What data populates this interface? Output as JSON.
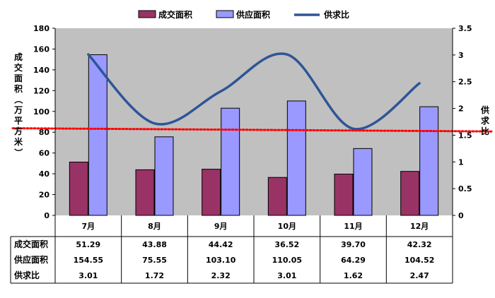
{
  "chart_data": {
    "type": "bar",
    "categories": [
      "7月",
      "8月",
      "9月",
      "10月",
      "11月",
      "12月"
    ],
    "series": [
      {
        "name": "成交面积",
        "type": "bar",
        "axis": "left",
        "values": [
          51.29,
          43.88,
          44.42,
          36.52,
          39.7,
          42.32
        ],
        "labels": [
          "51.29",
          "43.88",
          "44.42",
          "36.52",
          "39.70",
          "42.32"
        ]
      },
      {
        "name": "供应面积",
        "type": "bar",
        "axis": "left",
        "values": [
          154.55,
          75.55,
          103.1,
          110.05,
          64.29,
          104.52
        ],
        "labels": [
          "154.55",
          "75.55",
          "103.10",
          "110.05",
          "64.29",
          "104.52"
        ]
      },
      {
        "name": "供求比",
        "type": "line",
        "axis": "right",
        "values": [
          3.01,
          1.72,
          2.32,
          3.01,
          1.62,
          2.47
        ],
        "labels": [
          "3.01",
          "1.72",
          "2.32",
          "3.01",
          "1.62",
          "2.47"
        ]
      }
    ],
    "trendline": {
      "style": "dotted",
      "color": "#ff0000",
      "start": 1.63,
      "end": 1.57
    },
    "ylabel_left": "成交面积（万平方米）",
    "ylabel_right": "供求比",
    "ylim_left": [
      0,
      180
    ],
    "yticks_left": [
      "0",
      "20",
      "40",
      "60",
      "80",
      "100",
      "120",
      "140",
      "160",
      "180"
    ],
    "ylim_right": [
      0,
      3.5
    ],
    "yticks_right": [
      "0",
      "0.5",
      "1",
      "1.5",
      "2",
      "2.5",
      "3",
      "3.5"
    ],
    "grid": false,
    "legend_position": "top-center",
    "data_table": true,
    "colors": {
      "bar1": "#993366",
      "bar2": "#9999ff",
      "line": "#2e5597",
      "trend": "#ff0000",
      "plot_bg": "#c0c0c0"
    }
  }
}
